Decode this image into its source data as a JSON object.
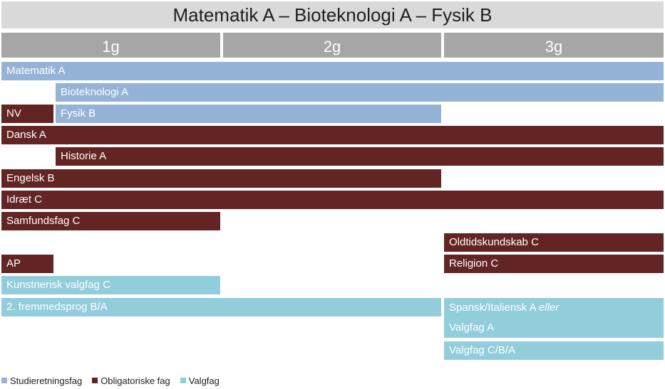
{
  "title": "Matematik A – Bioteknologi A – Fysik B",
  "years": [
    "1g",
    "2g",
    "3g"
  ],
  "colors": {
    "studieretningsfag": "#95b3d7",
    "obligatoriske": "#632523",
    "valgfag": "#92cddc",
    "header_bg": "#d9d9d9",
    "year_bg": "#a6a6a6"
  },
  "subjects": {
    "matematik": "Matematik A",
    "bioteknologi": "Bioteknologi A",
    "nv": "NV",
    "fysik": "Fysik B",
    "dansk": "Dansk A",
    "historie": "Historie A",
    "engelsk": "Engelsk B",
    "idraet": "Idræt C",
    "samfundsfag": "Samfundsfag C",
    "oldtid": "Oldtidskundskab C",
    "ap": "AP",
    "religion": "Religion C",
    "kunst": "Kunstnerisk valgfag C",
    "fremmedsprog": "2. fremmedsprog B/A",
    "spansk_line1": "Spansk/Italiensk A",
    "spansk_eller": "eller",
    "spansk_line2": "Valgfag A",
    "valgfag_cba": "Valgfag C/B/A"
  },
  "legend": {
    "studieretningsfag": "Studieretningsfag",
    "obligatoriske": "Obligatoriske fag",
    "valgfag": "Valgfag"
  }
}
